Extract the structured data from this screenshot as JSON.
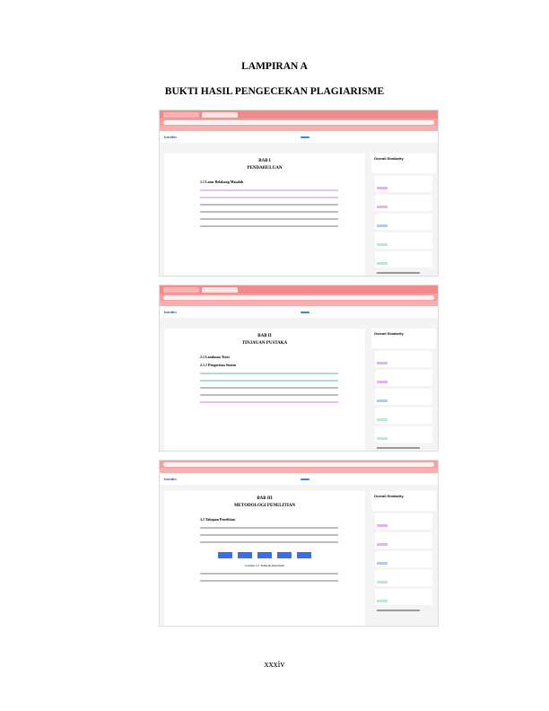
{
  "page": {
    "heading": "LAMPIRAN A",
    "subheading": "BUKTI HASIL PENGECEKAN PLAGIARISME",
    "page_number": "xxxiv"
  },
  "screenshots": [
    {
      "chapter": "BAB I",
      "chapter_title": "PENDAHULUAN",
      "section": "1.1 Latar Belakang Masalah",
      "panel_title": "Overall Similarity",
      "app": "turnitin"
    },
    {
      "chapter": "BAB II",
      "chapter_title": "TINJAUAN PUSTAKA",
      "section": "2.1 Landasan Teori",
      "subsection": "2.1.1 Pengertian Sistem",
      "panel_title": "Overall Similarity",
      "app": "turnitin"
    },
    {
      "chapter": "BAB III",
      "chapter_title": "METODOLOGI PENELITIAN",
      "section": "3.1 Tahapan Penelitian",
      "caption": "Gambar 3.1 Tahapan Penelitian",
      "panel_title": "Overall Similarity",
      "app": "turnitin"
    }
  ],
  "colors": {
    "tab_bar": "#f08b8b",
    "highlight_pink": "#d78ee6",
    "highlight_green": "#6bc1a8",
    "accent_blue": "#3b82f6"
  }
}
